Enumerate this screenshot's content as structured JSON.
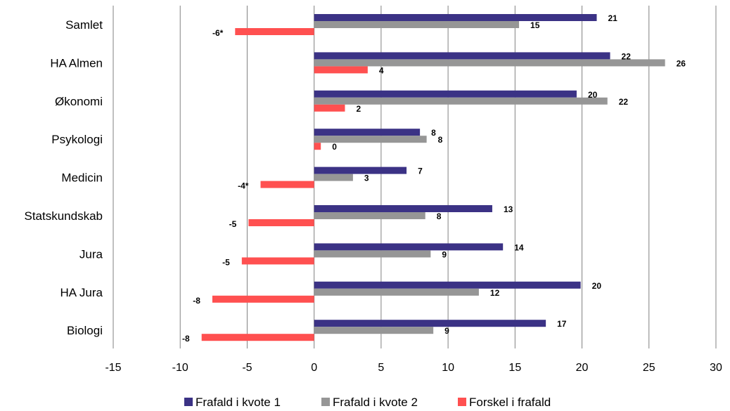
{
  "chart_data": {
    "type": "bar",
    "orientation": "horizontal",
    "categories": [
      "Samlet",
      "HA Almen",
      "Økonomi",
      "Psykologi",
      "Medicin",
      "Statskundskab",
      "Jura",
      "HA Jura",
      "Biologi"
    ],
    "series": [
      {
        "name": "Frafald i kvote 1",
        "color": "#3b3285",
        "values": [
          21.1,
          22.1,
          19.6,
          7.9,
          6.9,
          13.3,
          14.1,
          19.9,
          17.3
        ],
        "labels": [
          "21",
          "22",
          "20",
          "8",
          "7",
          "13",
          "14",
          "20",
          "17"
        ]
      },
      {
        "name": "Frafald i kvote 2",
        "color": "#969696",
        "values": [
          15.3,
          26.2,
          21.9,
          8.4,
          2.9,
          8.3,
          8.7,
          12.3,
          8.9
        ],
        "labels": [
          "15",
          "26",
          "22",
          "8",
          "3",
          "8",
          "9",
          "12",
          "9"
        ]
      },
      {
        "name": "Forskel i frafald",
        "color": "#ff5050",
        "values": [
          -5.9,
          4.0,
          2.3,
          0.5,
          -4.0,
          -4.9,
          -5.4,
          -7.6,
          -8.4
        ],
        "labels": [
          "-6*",
          "4",
          "2",
          "0",
          "-4*",
          "-5",
          "-5",
          "-8",
          "-8"
        ]
      }
    ],
    "xticks": [
      "-15",
      "-10",
      "-5",
      "0",
      "5",
      "10",
      "15",
      "20",
      "25",
      "30"
    ],
    "xlim": [
      -15,
      30
    ],
    "grid": true,
    "legend_position": "bottom"
  }
}
